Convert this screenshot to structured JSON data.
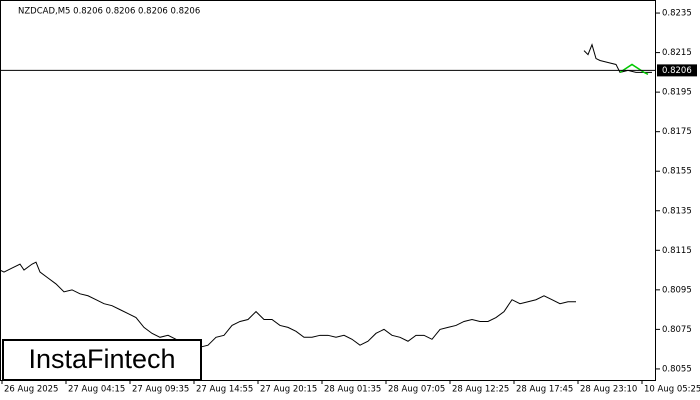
{
  "chart_data": {
    "type": "line",
    "title": "NZDCAD,M5  0.8206 0.8206 0.8206 0.8206",
    "logo": "InstaFintech",
    "current_price": 0.8206,
    "color": "#000000",
    "xlim": [
      0,
      656
    ],
    "ylim": [
      0.80494,
      0.82416
    ],
    "yticks": [
      0.8235,
      0.8215,
      0.8195,
      0.8175,
      0.8155,
      0.8135,
      0.8115,
      0.8095,
      0.8075,
      0.8055
    ],
    "xticks": [
      {
        "value": 2,
        "label": "26 Aug 2025"
      },
      {
        "value": 66,
        "label": "27 Aug 04:15"
      },
      {
        "value": 130,
        "label": "27 Aug 09:35"
      },
      {
        "value": 194,
        "label": "27 Aug 14:55"
      },
      {
        "value": 258,
        "label": "27 Aug 20:15"
      },
      {
        "value": 322,
        "label": "28 Aug 01:35"
      },
      {
        "value": 386,
        "label": "28 Aug 07:05"
      },
      {
        "value": 450,
        "label": "28 Aug 12:25"
      },
      {
        "value": 514,
        "label": "28 Aug 17:45"
      },
      {
        "value": 578,
        "label": "28 Aug 23:10"
      },
      {
        "value": 642,
        "label": "10 Aug 05:25"
      }
    ],
    "series": [
      {
        "color": "#000000",
        "x": [
          0,
          4,
          12,
          20,
          24,
          32,
          36,
          40,
          48,
          56,
          64,
          72,
          80,
          88,
          96,
          104,
          112,
          120,
          128,
          136,
          144,
          152,
          160,
          168,
          176,
          184,
          192,
          200,
          208,
          216,
          224,
          232,
          240,
          248,
          256,
          264,
          272,
          280,
          288,
          296,
          304,
          312,
          320,
          328,
          336,
          344,
          352,
          360,
          368,
          376,
          384,
          392,
          400,
          408,
          416,
          424,
          432,
          440,
          448,
          456,
          464,
          472,
          480,
          488,
          496,
          504,
          512,
          520,
          528,
          536,
          544,
          552,
          560,
          568,
          576,
          580,
          584,
          588,
          592,
          596,
          600,
          608,
          616,
          620,
          628,
          636,
          644,
          652
        ],
        "values": [
          0.8105,
          0.8104,
          0.8106,
          0.8108,
          0.8105,
          0.8108,
          0.8109,
          0.8104,
          0.8101,
          0.8098,
          0.8094,
          0.8095,
          0.8093,
          0.8092,
          0.809,
          0.8088,
          0.8087,
          0.8085,
          0.8083,
          0.8081,
          0.8076,
          0.8073,
          0.8071,
          0.8072,
          0.807,
          0.8067,
          0.8065,
          0.8066,
          0.8067,
          0.8071,
          0.8072,
          0.8077,
          0.8079,
          0.808,
          0.8084,
          0.808,
          0.808,
          0.8077,
          0.8076,
          0.8074,
          0.8071,
          0.8071,
          0.8072,
          0.8072,
          0.8071,
          0.8072,
          0.807,
          0.8067,
          0.8069,
          0.8073,
          0.8075,
          0.8072,
          0.8071,
          0.8069,
          0.8072,
          0.8072,
          0.807,
          0.8075,
          0.8076,
          0.8077,
          0.8079,
          0.808,
          0.8079,
          0.8079,
          0.8081,
          0.8084,
          0.809,
          0.8088,
          0.8089,
          0.809,
          0.8092,
          0.809,
          0.8088,
          0.8089,
          0.8089,
          null,
          0.8216,
          0.8214,
          0.8219,
          0.8212,
          0.8211,
          0.821,
          0.8209,
          0.8205,
          0.8206,
          0.8205,
          0.8205,
          0.8205
        ]
      },
      {
        "color": "#00c800",
        "x": [
          620,
          626,
          632,
          638,
          644,
          648
        ],
        "values": [
          0.8205,
          0.8207,
          0.8209,
          0.8207,
          0.8205,
          0.8204
        ]
      }
    ]
  }
}
